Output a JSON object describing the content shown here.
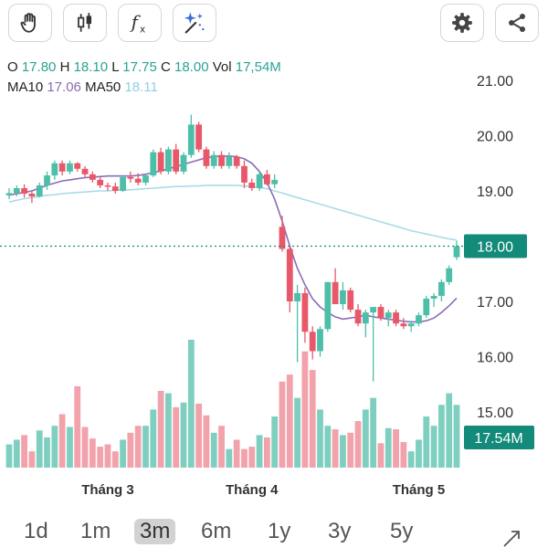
{
  "toolbar": {
    "left_icons": [
      "hand-icon",
      "candlestick-icon",
      "function-icon",
      "sparkle-icon"
    ],
    "right_icons": [
      "gear-icon",
      "share-icon"
    ]
  },
  "ohlc": {
    "o_label": "O",
    "o": "17.80",
    "h_label": "H",
    "h": "18.10",
    "l_label": "L",
    "l": "17.75",
    "c_label": "C",
    "c": "18.00",
    "vol_label": "Vol",
    "vol": "17,54M"
  },
  "ma": {
    "ma10_label": "MA10",
    "ma10": "17.06",
    "ma50_label": "MA50",
    "ma50": "18.11"
  },
  "timeframes": [
    {
      "label": "1d",
      "selected": false
    },
    {
      "label": "1m",
      "selected": false
    },
    {
      "label": "3m",
      "selected": true
    },
    {
      "label": "6m",
      "selected": false
    },
    {
      "label": "1y",
      "selected": false
    },
    {
      "label": "3y",
      "selected": false
    },
    {
      "label": "5y",
      "selected": false
    }
  ],
  "colors": {
    "up": "#4dbfa8",
    "down": "#e8586a",
    "ma10": "#8a6db3",
    "ma50": "#a9dbea",
    "accent": "#138a7a"
  },
  "chart_data": {
    "type": "candlestick",
    "ylim": [
      14.6,
      21.2
    ],
    "y_ticks": [
      "21.00",
      "20.00",
      "19.00",
      "18.00",
      "17.00",
      "16.00",
      "15.00"
    ],
    "x_labels": [
      {
        "label": "Tháng 3",
        "index": 13
      },
      {
        "label": "Tháng 4",
        "index": 32
      },
      {
        "label": "Tháng 5",
        "index": 54
      }
    ],
    "price_tag": "18.00",
    "volume_tag": "17.54M",
    "candles": [
      [
        18.92,
        19.05,
        18.85,
        18.96
      ],
      [
        18.96,
        19.1,
        18.9,
        19.05
      ],
      [
        19.05,
        19.12,
        18.88,
        18.95
      ],
      [
        18.95,
        19.0,
        18.78,
        18.9
      ],
      [
        18.9,
        19.15,
        18.88,
        19.1
      ],
      [
        19.1,
        19.35,
        19.02,
        19.28
      ],
      [
        19.28,
        19.55,
        19.2,
        19.5
      ],
      [
        19.5,
        19.55,
        19.28,
        19.35
      ],
      [
        19.35,
        19.55,
        19.3,
        19.5
      ],
      [
        19.5,
        19.52,
        19.35,
        19.4
      ],
      [
        19.4,
        19.45,
        19.25,
        19.3
      ],
      [
        19.3,
        19.35,
        19.15,
        19.2
      ],
      [
        19.2,
        19.25,
        19.05,
        19.1
      ],
      [
        19.1,
        19.15,
        19.0,
        19.08
      ],
      [
        19.08,
        19.15,
        18.95,
        19.0
      ],
      [
        19.0,
        19.28,
        18.98,
        19.25
      ],
      [
        19.25,
        19.35,
        19.15,
        19.22
      ],
      [
        19.22,
        19.32,
        19.1,
        19.15
      ],
      [
        19.15,
        19.3,
        19.1,
        19.28
      ],
      [
        19.28,
        19.75,
        19.25,
        19.7
      ],
      [
        19.7,
        19.78,
        19.3,
        19.35
      ],
      [
        19.35,
        19.8,
        19.3,
        19.75
      ],
      [
        19.75,
        19.85,
        19.3,
        19.35
      ],
      [
        19.35,
        19.7,
        19.3,
        19.65
      ],
      [
        19.65,
        20.38,
        19.6,
        20.2
      ],
      [
        20.2,
        20.25,
        19.7,
        19.75
      ],
      [
        19.75,
        19.8,
        19.4,
        19.45
      ],
      [
        19.45,
        19.72,
        19.4,
        19.65
      ],
      [
        19.65,
        19.72,
        19.4,
        19.45
      ],
      [
        19.45,
        19.7,
        19.4,
        19.62
      ],
      [
        19.62,
        19.65,
        19.4,
        19.45
      ],
      [
        19.45,
        19.55,
        19.05,
        19.15
      ],
      [
        19.15,
        19.22,
        19.0,
        19.05
      ],
      [
        19.05,
        19.35,
        19.0,
        19.3
      ],
      [
        19.3,
        19.38,
        19.1,
        19.12
      ],
      [
        19.12,
        19.3,
        19.05,
        19.2
      ],
      [
        18.35,
        18.55,
        17.9,
        17.95
      ],
      [
        17.95,
        18.0,
        16.8,
        17.0
      ],
      [
        17.0,
        17.3,
        15.9,
        17.15
      ],
      [
        17.15,
        17.25,
        16.25,
        16.45
      ],
      [
        16.45,
        16.55,
        15.95,
        16.1
      ],
      [
        16.1,
        16.55,
        16.0,
        16.5
      ],
      [
        16.5,
        17.35,
        16.45,
        17.35
      ],
      [
        17.35,
        17.6,
        16.95,
        16.95
      ],
      [
        16.95,
        17.35,
        16.85,
        17.2
      ],
      [
        17.2,
        17.25,
        16.8,
        16.85
      ],
      [
        16.85,
        16.95,
        16.55,
        16.6
      ],
      [
        16.6,
        16.85,
        16.35,
        16.8
      ],
      [
        16.8,
        16.9,
        15.55,
        16.9
      ],
      [
        16.9,
        16.95,
        16.65,
        16.7
      ],
      [
        16.7,
        16.85,
        16.55,
        16.8
      ],
      [
        16.8,
        16.85,
        16.55,
        16.6
      ],
      [
        16.6,
        16.7,
        16.5,
        16.55
      ],
      [
        16.55,
        16.65,
        16.45,
        16.6
      ],
      [
        16.6,
        16.8,
        16.55,
        16.75
      ],
      [
        16.75,
        17.1,
        16.7,
        17.05
      ],
      [
        17.05,
        17.15,
        16.9,
        17.1
      ],
      [
        17.1,
        17.4,
        17.0,
        17.35
      ],
      [
        17.35,
        17.65,
        17.3,
        17.6
      ],
      [
        17.8,
        18.1,
        17.75,
        18.0
      ]
    ],
    "ma10": [
      18.92,
      18.95,
      18.97,
      19.0,
      19.05,
      19.1,
      19.14,
      19.18,
      19.2,
      19.22,
      19.24,
      19.25,
      19.26,
      19.27,
      19.27,
      19.27,
      19.27,
      19.28,
      19.3,
      19.33,
      19.36,
      19.4,
      19.44,
      19.48,
      19.52,
      19.56,
      19.6,
      19.62,
      19.63,
      19.63,
      19.62,
      19.58,
      19.5,
      19.35,
      19.15,
      18.85,
      18.45,
      18.0,
      17.6,
      17.3,
      17.05,
      16.9,
      16.8,
      16.72,
      16.68,
      16.7,
      16.72,
      16.75,
      16.72,
      16.7,
      16.68,
      16.66,
      16.64,
      16.63,
      16.63,
      16.65,
      16.7,
      16.8,
      16.92,
      17.06
    ],
    "ma50": [
      18.8,
      18.83,
      18.86,
      18.88,
      18.9,
      18.92,
      18.93,
      18.95,
      18.96,
      18.97,
      18.98,
      18.99,
      19.0,
      19.0,
      19.01,
      19.02,
      19.02,
      19.03,
      19.04,
      19.05,
      19.06,
      19.07,
      19.08,
      19.08,
      19.09,
      19.09,
      19.1,
      19.1,
      19.1,
      19.1,
      19.1,
      19.09,
      19.08,
      19.06,
      19.04,
      19.0,
      18.96,
      18.92,
      18.88,
      18.84,
      18.8,
      18.76,
      18.72,
      18.68,
      18.64,
      18.6,
      18.56,
      18.52,
      18.48,
      18.44,
      18.4,
      18.36,
      18.32,
      18.28,
      18.25,
      18.22,
      18.19,
      18.16,
      18.13,
      18.11
    ],
    "volume": [
      2.0,
      2.4,
      2.8,
      1.4,
      3.2,
      2.6,
      3.6,
      4.6,
      3.5,
      7.0,
      3.5,
      2.5,
      1.8,
      2.0,
      1.4,
      2.4,
      3.0,
      3.6,
      3.6,
      5.0,
      6.6,
      6.4,
      5.2,
      5.6,
      11.0,
      5.5,
      4.5,
      3.0,
      3.6,
      1.6,
      2.4,
      1.6,
      1.8,
      2.8,
      2.6,
      4.4,
      7.4,
      8.0,
      6.0,
      10.0,
      8.4,
      5.0,
      3.6,
      3.3,
      2.8,
      3.0,
      4.0,
      5.0,
      6.0,
      2.1,
      3.4,
      3.3,
      2.2,
      1.4,
      2.4,
      4.4,
      3.6,
      5.4,
      6.4,
      5.4
    ],
    "vol_max": 11.0
  }
}
